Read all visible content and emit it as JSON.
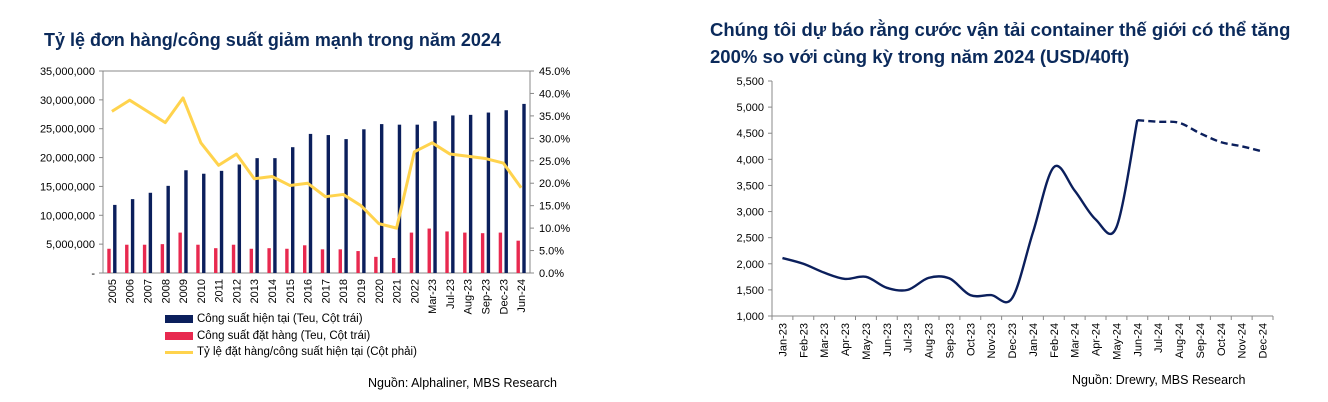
{
  "chart_data": [
    {
      "type": "bar",
      "title": "Tỷ lệ đơn hàng/công suất giảm mạnh trong năm 2024",
      "categories": [
        "2005",
        "2006",
        "2007",
        "2008",
        "2009",
        "2010",
        "2011",
        "2012",
        "2013",
        "2014",
        "2015",
        "2016",
        "2017",
        "2018",
        "2019",
        "2020",
        "2021",
        "2022",
        "Mar-23",
        "Jul-23",
        "Aug-23",
        "Sep-23",
        "Dec-23",
        "Jun-24"
      ],
      "y_left_ticks": [
        "-",
        "5,000,000",
        "10,000,000",
        "15,000,000",
        "20,000,000",
        "25,000,000",
        "30,000,000",
        "35,000,000"
      ],
      "y_right_ticks": [
        "0.0%",
        "5.0%",
        "10.0%",
        "15.0%",
        "20.0%",
        "25.0%",
        "30.0%",
        "35.0%",
        "40.0%",
        "45.0%"
      ],
      "ylim_left": [
        0,
        35000000
      ],
      "ylim_right": [
        0,
        45
      ],
      "series": [
        {
          "name": "Công suất hiện tại (Teu, Cột trái)",
          "kind": "bar",
          "axis": "left",
          "color": "#0b1f5c",
          "values": [
            11800000,
            12800000,
            13900000,
            15100000,
            17800000,
            17200000,
            17700000,
            18800000,
            19900000,
            19900000,
            21800000,
            24100000,
            23900000,
            23200000,
            24900000,
            25800000,
            25700000,
            25700000,
            26300000,
            27300000,
            27400000,
            27800000,
            28200000,
            29300000
          ]
        },
        {
          "name": "Công suất đặt hàng (Teu, Cột trái)",
          "kind": "bar",
          "axis": "left",
          "color": "#e8294f",
          "values": [
            4200000,
            4900000,
            4900000,
            5000000,
            7000000,
            4900000,
            4300000,
            4900000,
            4200000,
            4300000,
            4200000,
            4800000,
            4100000,
            4100000,
            3800000,
            2800000,
            2600000,
            7000000,
            7700000,
            7200000,
            7000000,
            6900000,
            7000000,
            5600000
          ]
        },
        {
          "name": "Tỷ lệ đặt hàng/công suất hiện tại (Cột phải)",
          "kind": "line",
          "axis": "right",
          "color": "#ffd34d",
          "values": [
            36.0,
            38.5,
            36.0,
            33.5,
            39.0,
            29.0,
            24.0,
            26.5,
            21.0,
            21.5,
            19.5,
            20.0,
            17.0,
            17.5,
            15.0,
            11.0,
            10.0,
            27.0,
            29.0,
            26.5,
            26.0,
            25.5,
            24.5,
            19.0
          ]
        }
      ],
      "legend_position": "bottom",
      "source": "Nguồn: Alphaliner, MBS Research"
    },
    {
      "type": "line",
      "title": "Chúng tôi dự báo rằng cước vận tải container thế giới có thể tăng 200% so với cùng kỳ trong năm 2024 (USD/40ft)",
      "x": [
        "Jan-23",
        "Feb-23",
        "Mar-23",
        "Apr-23",
        "May-23",
        "Jun-23",
        "Jul-23",
        "Aug-23",
        "Sep-23",
        "Oct-23",
        "Nov-23",
        "Dec-23",
        "Jan-24",
        "Feb-24",
        "Mar-24",
        "Apr-24",
        "May-24",
        "Jun-24",
        "Jul-24",
        "Aug-24",
        "Sep-24",
        "Oct-24",
        "Nov-24",
        "Dec-24"
      ],
      "y_ticks": [
        "1,000",
        "1,500",
        "2,000",
        "2,500",
        "3,000",
        "3,500",
        "4,000",
        "4,500",
        "5,000",
        "5,500"
      ],
      "ylim": [
        1000,
        5500
      ],
      "series": [
        {
          "name": "",
          "color": "#0b1f5c",
          "values": [
            2110,
            2000,
            1830,
            1710,
            1750,
            1540,
            1500,
            1730,
            1720,
            1400,
            1400,
            1340,
            2600,
            3850,
            3400,
            2850,
            2700,
            4750,
            4720,
            4700,
            4500,
            4330,
            4250,
            4150
          ],
          "actual_through": "Jun-24"
        }
      ],
      "source": "Nguồn: Drewry, MBS Research"
    }
  ]
}
